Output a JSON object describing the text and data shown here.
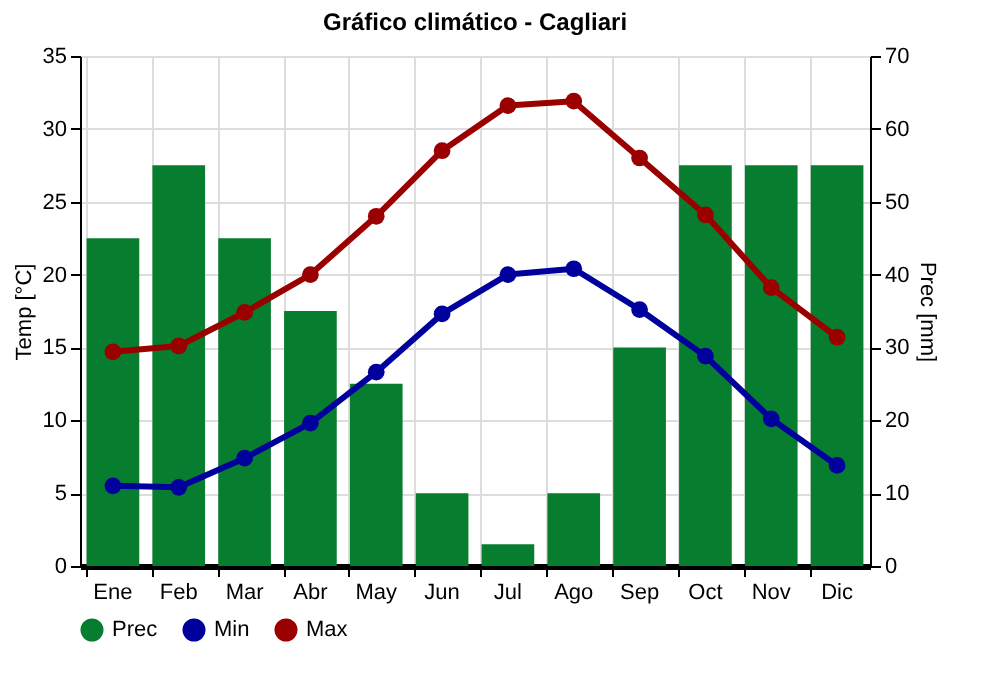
{
  "chart_data": {
    "type": "bar",
    "title": "Gráfico climático - Cagliari",
    "ylabel": "Temp [°C]",
    "y2label": "Prec [mm]",
    "categories": [
      "Ene",
      "Feb",
      "Mar",
      "Abr",
      "May",
      "Jun",
      "Jul",
      "Ago",
      "Sep",
      "Oct",
      "Nov",
      "Dic"
    ],
    "series": [
      {
        "name": "Prec",
        "axis": "y2",
        "color": "#077d30",
        "values": [
          45,
          55,
          45,
          35,
          25,
          10,
          3,
          10,
          30,
          55,
          55,
          55
        ]
      },
      {
        "name": "Min",
        "type": "line",
        "color": "#00009c",
        "values": [
          5.5,
          5.4,
          7.4,
          9.8,
          13.3,
          17.3,
          20,
          20.4,
          17.6,
          14.4,
          10.1,
          6.9
        ]
      },
      {
        "name": "Max",
        "type": "line",
        "color": "#9b0000",
        "values": [
          14.7,
          15.1,
          17.4,
          20,
          24,
          28.5,
          31.6,
          31.9,
          28,
          24.1,
          19.1,
          15.7
        ]
      }
    ],
    "ylim": [
      0,
      35
    ],
    "yticks": [
      0,
      5,
      10,
      15,
      20,
      25,
      30,
      35
    ],
    "y2lim": [
      0,
      70
    ],
    "y2ticks": [
      0,
      10,
      20,
      30,
      40,
      50,
      60,
      70
    ],
    "grid": true,
    "legend": "bottom",
    "marker": "circle",
    "line_style": "solid"
  }
}
